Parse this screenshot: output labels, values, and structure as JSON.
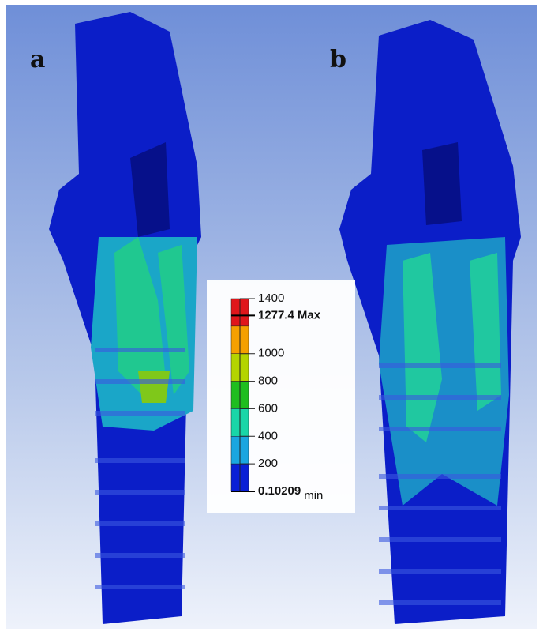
{
  "panels": [
    {
      "label": "a"
    },
    {
      "label": "b"
    }
  ],
  "legend": {
    "ticks": [
      1400,
      1000,
      800,
      600,
      400,
      200,
      0
    ],
    "scale": [
      0,
      1400
    ],
    "max": {
      "value": 1277.4,
      "label": "Max"
    },
    "min": {
      "value": 0.10209,
      "label": "min"
    },
    "bands": [
      {
        "from": 1200,
        "to": 1400,
        "color": "#e0161b"
      },
      {
        "from": 1000,
        "to": 1200,
        "color": "#f5a000"
      },
      {
        "from": 800,
        "to": 1000,
        "color": "#b4d400"
      },
      {
        "from": 600,
        "to": 800,
        "color": "#1fbe1f"
      },
      {
        "from": 400,
        "to": 600,
        "color": "#19d6a8"
      },
      {
        "from": 200,
        "to": 400,
        "color": "#1aa6e0"
      },
      {
        "from": 0,
        "to": 200,
        "color": "#0a1fd6"
      }
    ]
  }
}
